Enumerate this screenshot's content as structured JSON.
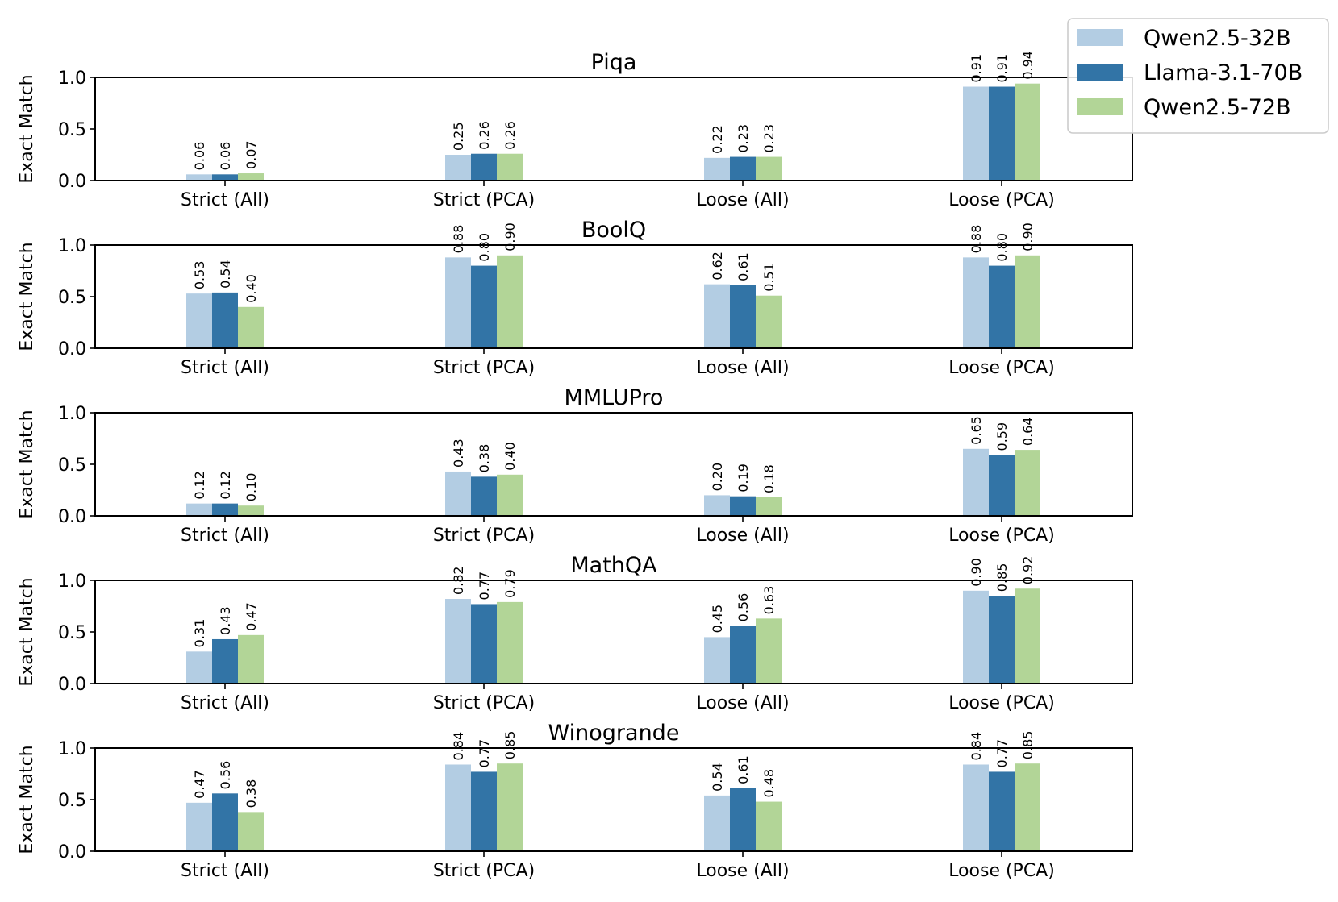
{
  "legend": {
    "items": [
      {
        "name": "Qwen2.5-32B",
        "color": "#b3cde3"
      },
      {
        "name": "Llama-3.1-70B",
        "color": "#3274a6"
      },
      {
        "name": "Qwen2.5-72B",
        "color": "#b2d597"
      }
    ]
  },
  "chart_data": [
    {
      "type": "bar",
      "title": "Piqa",
      "ylabel": "Exact Match",
      "ylim": [
        0,
        1.0
      ],
      "yticks": [
        "0.0",
        "0.5",
        "1.0"
      ],
      "categories": [
        "Strict (All)",
        "Strict (PCA)",
        "Loose (All)",
        "Loose (PCA)"
      ],
      "series": [
        {
          "name": "Qwen2.5-32B",
          "values": [
            0.06,
            0.25,
            0.22,
            0.91
          ],
          "labels": [
            "0.06",
            "0.25",
            "0.22",
            "0.91"
          ]
        },
        {
          "name": "Llama-3.1-70B",
          "values": [
            0.06,
            0.26,
            0.23,
            0.91
          ],
          "labels": [
            "0.06",
            "0.26",
            "0.23",
            "0.91"
          ]
        },
        {
          "name": "Qwen2.5-72B",
          "values": [
            0.07,
            0.26,
            0.23,
            0.94
          ],
          "labels": [
            "0.07",
            "0.26",
            "0.23",
            "0.94"
          ]
        }
      ]
    },
    {
      "type": "bar",
      "title": "BoolQ",
      "ylabel": "Exact Match",
      "ylim": [
        0,
        1.0
      ],
      "yticks": [
        "0.0",
        "0.5",
        "1.0"
      ],
      "categories": [
        "Strict (All)",
        "Strict (PCA)",
        "Loose (All)",
        "Loose (PCA)"
      ],
      "series": [
        {
          "name": "Qwen2.5-32B",
          "values": [
            0.53,
            0.88,
            0.62,
            0.88
          ],
          "labels": [
            "0.53",
            "0.88",
            "0.62",
            "0.88"
          ]
        },
        {
          "name": "Llama-3.1-70B",
          "values": [
            0.54,
            0.8,
            0.61,
            0.8
          ],
          "labels": [
            "0.54",
            "0.80",
            "0.61",
            "0.80"
          ]
        },
        {
          "name": "Qwen2.5-72B",
          "values": [
            0.4,
            0.9,
            0.51,
            0.9
          ],
          "labels": [
            "0.40",
            "0.90",
            "0.51",
            "0.90"
          ]
        }
      ]
    },
    {
      "type": "bar",
      "title": "MMLUPro",
      "ylabel": "Exact Match",
      "ylim": [
        0,
        1.0
      ],
      "yticks": [
        "0.0",
        "0.5",
        "1.0"
      ],
      "categories": [
        "Strict (All)",
        "Strict (PCA)",
        "Loose (All)",
        "Loose (PCA)"
      ],
      "series": [
        {
          "name": "Qwen2.5-32B",
          "values": [
            0.12,
            0.43,
            0.2,
            0.65
          ],
          "labels": [
            "0.12",
            "0.43",
            "0.20",
            "0.65"
          ]
        },
        {
          "name": "Llama-3.1-70B",
          "values": [
            0.12,
            0.38,
            0.19,
            0.59
          ],
          "labels": [
            "0.12",
            "0.38",
            "0.19",
            "0.59"
          ]
        },
        {
          "name": "Qwen2.5-72B",
          "values": [
            0.1,
            0.4,
            0.18,
            0.64
          ],
          "labels": [
            "0.10",
            "0.40",
            "0.18",
            "0.64"
          ]
        }
      ]
    },
    {
      "type": "bar",
      "title": "MathQA",
      "ylabel": "Exact Match",
      "ylim": [
        0,
        1.0
      ],
      "yticks": [
        "0.0",
        "0.5",
        "1.0"
      ],
      "categories": [
        "Strict (All)",
        "Strict (PCA)",
        "Loose (All)",
        "Loose (PCA)"
      ],
      "series": [
        {
          "name": "Qwen2.5-32B",
          "values": [
            0.31,
            0.82,
            0.45,
            0.9
          ],
          "labels": [
            "0.31",
            "0.82",
            "0.45",
            "0.90"
          ]
        },
        {
          "name": "Llama-3.1-70B",
          "values": [
            0.43,
            0.77,
            0.56,
            0.85
          ],
          "labels": [
            "0.43",
            "0.77",
            "0.56",
            "0.85"
          ]
        },
        {
          "name": "Qwen2.5-72B",
          "values": [
            0.47,
            0.79,
            0.63,
            0.92
          ],
          "labels": [
            "0.47",
            "0.79",
            "0.63",
            "0.92"
          ]
        }
      ]
    },
    {
      "type": "bar",
      "title": "Winogrande",
      "ylabel": "Exact Match",
      "ylim": [
        0,
        1.0
      ],
      "yticks": [
        "0.0",
        "0.5",
        "1.0"
      ],
      "categories": [
        "Strict (All)",
        "Strict (PCA)",
        "Loose (All)",
        "Loose (PCA)"
      ],
      "series": [
        {
          "name": "Qwen2.5-32B",
          "values": [
            0.47,
            0.84,
            0.54,
            0.84
          ],
          "labels": [
            "0.47",
            "0.84",
            "0.54",
            "0.84"
          ]
        },
        {
          "name": "Llama-3.1-70B",
          "values": [
            0.56,
            0.77,
            0.61,
            0.77
          ],
          "labels": [
            "0.56",
            "0.77",
            "0.61",
            "0.77"
          ]
        },
        {
          "name": "Qwen2.5-72B",
          "values": [
            0.38,
            0.85,
            0.48,
            0.85
          ],
          "labels": [
            "0.38",
            "0.85",
            "0.48",
            "0.85"
          ]
        }
      ]
    }
  ]
}
